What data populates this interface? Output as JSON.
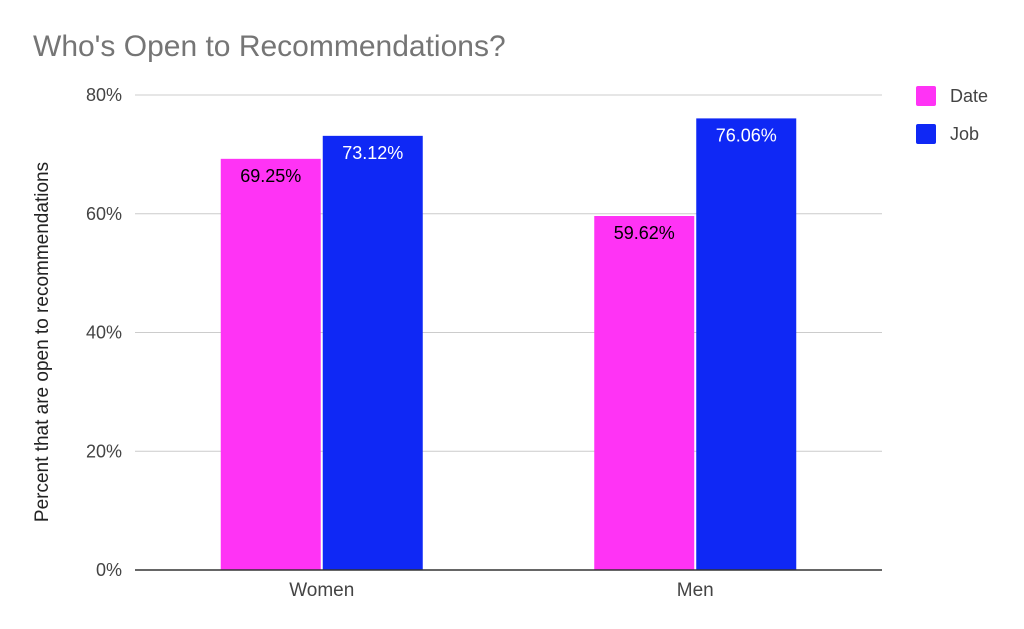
{
  "chart_data": {
    "type": "bar",
    "title": "Who's Open to Recommendations?",
    "ylabel": "Percent that are open to recommendations",
    "xlabel": "",
    "categories": [
      "Women",
      "Men"
    ],
    "series": [
      {
        "name": "Date",
        "color": "#ff33f5",
        "label_color": "#000000",
        "values": [
          69.25,
          59.62
        ],
        "labels": [
          "69.25%",
          "59.62%"
        ]
      },
      {
        "name": "Job",
        "color": "#0f28f5",
        "label_color": "#ffffff",
        "values": [
          73.12,
          76.06
        ],
        "labels": [
          "73.12%",
          "76.06%"
        ]
      }
    ],
    "ylim": [
      0,
      80
    ],
    "yticks": [
      0,
      20,
      40,
      60,
      80
    ],
    "ytick_labels": [
      "0%",
      "20%",
      "40%",
      "60%",
      "80%"
    ],
    "grid": true,
    "legend_position": "top-right",
    "colors": {
      "gridline": "#cccccc",
      "baseline": "#333333"
    }
  }
}
